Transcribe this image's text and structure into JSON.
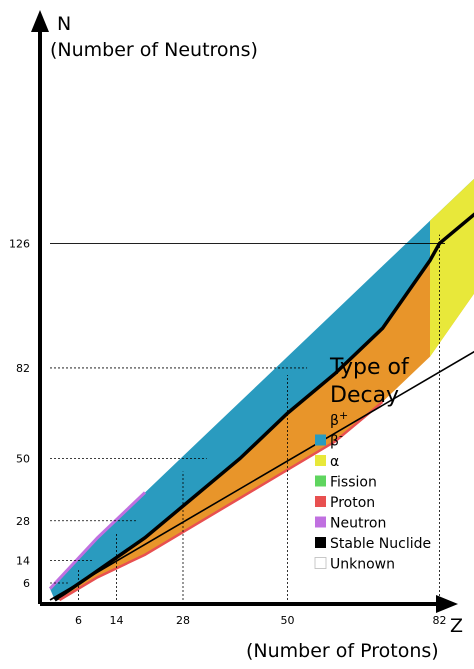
{
  "chart_data": {
    "type": "heatmap",
    "title": "",
    "ylabel_letter": "N",
    "ylabel": "(Number of Neutrons)",
    "xlabel_letter": "Z",
    "xlabel": "(Number of Protons)",
    "magic_numbers_x": [
      6,
      14,
      28,
      50,
      82
    ],
    "magic_numbers_y": [
      6,
      14,
      28,
      50,
      82,
      126
    ],
    "x_tick_labels": [
      "6",
      "14",
      "28",
      "50",
      "82"
    ],
    "y_tick_labels": [
      "6",
      "14",
      "28",
      "50",
      "82",
      "126"
    ],
    "xlim": [
      0,
      118
    ],
    "ylim": [
      0,
      180
    ],
    "reference_line": "N = Z",
    "legend": {
      "title_line1": "Type of",
      "title_line2": "Decay",
      "placement": "lower-right",
      "entries": [
        {
          "label": "β+",
          "base": "β",
          "sup": "+",
          "color": "#e8952a"
        },
        {
          "label": "β-",
          "base": "β",
          "sup": "-",
          "color": "#2a9bbf"
        },
        {
          "label": "α",
          "base": "α",
          "sup": "",
          "color": "#e8e83a"
        },
        {
          "label": "Fission",
          "base": "Fission",
          "sup": "",
          "color": "#5fd55f"
        },
        {
          "label": "Proton",
          "base": "Proton",
          "sup": "",
          "color": "#e85050"
        },
        {
          "label": "Neutron",
          "base": "Neutron",
          "sup": "",
          "color": "#c070e0"
        },
        {
          "label": "Stable Nuclide",
          "base": "Stable Nuclide",
          "sup": "",
          "color": "#000000"
        },
        {
          "label": "Unknown",
          "base": "Unknown",
          "sup": "",
          "color": "#ffffff"
        }
      ]
    },
    "bands": {
      "beta_minus_upper": [
        [
          0,
          4
        ],
        [
          10,
          22
        ],
        [
          20,
          38
        ],
        [
          30,
          54
        ],
        [
          40,
          70
        ],
        [
          50,
          86
        ],
        [
          60,
          102
        ],
        [
          70,
          118
        ],
        [
          80,
          134
        ],
        [
          90,
          150
        ],
        [
          100,
          162
        ],
        [
          110,
          172
        ],
        [
          118,
          176
        ]
      ],
      "stable_valley": [
        [
          1,
          0
        ],
        [
          8,
          8
        ],
        [
          20,
          22
        ],
        [
          30,
          36
        ],
        [
          40,
          50
        ],
        [
          50,
          66
        ],
        [
          60,
          80
        ],
        [
          70,
          96
        ],
        [
          80,
          120
        ],
        [
          82,
          126
        ],
        [
          92,
          140
        ]
      ],
      "beta_plus_lower": [
        [
          2,
          0
        ],
        [
          10,
          8
        ],
        [
          20,
          16
        ],
        [
          30,
          26
        ],
        [
          40,
          36
        ],
        [
          50,
          46
        ],
        [
          60,
          56
        ],
        [
          70,
          70
        ],
        [
          80,
          86
        ],
        [
          90,
          110
        ],
        [
          100,
          130
        ],
        [
          110,
          150
        ],
        [
          118,
          162
        ]
      ],
      "alpha_region_start_z": 78
    }
  }
}
